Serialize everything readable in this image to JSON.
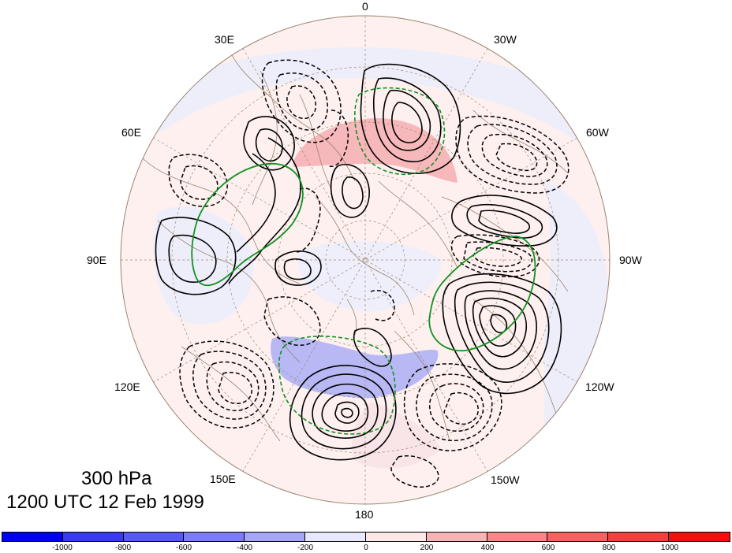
{
  "map": {
    "pressure_level": "300 hPa",
    "valid_time": "1200 UTC 12 Feb 1999",
    "longitude_labels": [
      {
        "id": "lon-0",
        "text": "0"
      },
      {
        "id": "lon-30w",
        "text": "30W"
      },
      {
        "id": "lon-60w",
        "text": "60W"
      },
      {
        "id": "lon-90w",
        "text": "90W"
      },
      {
        "id": "lon-120w",
        "text": "120W"
      },
      {
        "id": "lon-150w",
        "text": "150W"
      },
      {
        "id": "lon-180",
        "text": "180"
      },
      {
        "id": "lon-150e",
        "text": "150E"
      },
      {
        "id": "lon-120e",
        "text": "120E"
      },
      {
        "id": "lon-90e",
        "text": "90E"
      },
      {
        "id": "lon-60e",
        "text": "60E"
      },
      {
        "id": "lon-30e",
        "text": "30E"
      }
    ],
    "colors": {
      "positive_contour": "#000000",
      "negative_contour": "#000000",
      "green_contour": "#11911f",
      "coastline": "#9a8470",
      "graticule": "#a08a70"
    }
  },
  "colorbar": {
    "ticks": [
      "-1000",
      "-800",
      "-600",
      "-400",
      "-200",
      "0",
      "200",
      "400",
      "600",
      "800",
      "1000"
    ],
    "colors": [
      "#0000f5",
      "#3a3af5",
      "#5858f5",
      "#7c7cf5",
      "#a6a6f7",
      "#e8e8fc",
      "#fde8e8",
      "#f7b4b4",
      "#f58888",
      "#f56060",
      "#f53e3e",
      "#f50f0f"
    ]
  }
}
